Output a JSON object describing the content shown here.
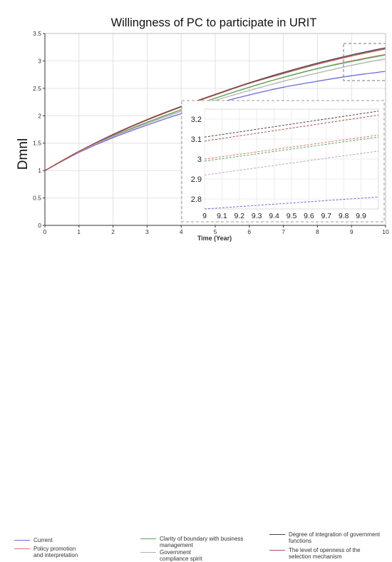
{
  "chart_data": {
    "type": "line",
    "title": "Willingness of PC to participate in URIT",
    "xlabel": "Time (Year)",
    "ylabel": "Dmnl",
    "xlim": [
      0,
      10
    ],
    "ylim": [
      0,
      3.5
    ],
    "x_ticks": [
      "0",
      "1",
      "2",
      "3",
      "4",
      "5",
      "6",
      "7",
      "8",
      "9",
      "10"
    ],
    "y_ticks": [
      "0",
      "0.5",
      "1",
      "1.5",
      "2",
      "2.5",
      "3",
      "3.5"
    ],
    "grid": true,
    "x": [
      0,
      1,
      2,
      3,
      4,
      5,
      6,
      7,
      8,
      9,
      10
    ],
    "series": [
      {
        "name": "Current",
        "color": "#6a6ae0",
        "values": [
          1.0,
          1.33,
          1.6,
          1.83,
          2.04,
          2.22,
          2.38,
          2.52,
          2.63,
          2.73,
          2.81
        ]
      },
      {
        "name": "Policy promotion and interpretation",
        "color": "#e0736a",
        "values": [
          1.0,
          1.34,
          1.63,
          1.88,
          2.11,
          2.32,
          2.52,
          2.7,
          2.86,
          3.0,
          3.12
        ]
      },
      {
        "name": "Clarity of boundary with business management",
        "color": "#55aa55",
        "values": [
          1.0,
          1.34,
          1.63,
          1.88,
          2.11,
          2.32,
          2.52,
          2.7,
          2.86,
          2.99,
          3.11
        ]
      },
      {
        "name": "Government compliance spirit",
        "color": "#b0b0b0",
        "values": [
          1.0,
          1.34,
          1.62,
          1.86,
          2.08,
          2.28,
          2.46,
          2.63,
          2.78,
          2.92,
          3.04
        ]
      },
      {
        "name": "Degree of integration of government functions",
        "color": "#444444",
        "values": [
          1.0,
          1.35,
          1.66,
          1.93,
          2.17,
          2.39,
          2.6,
          2.79,
          2.96,
          3.11,
          3.24
        ]
      },
      {
        "name": "The level of openness of the selection mechanism",
        "color": "#b84a4a",
        "values": [
          1.0,
          1.35,
          1.65,
          1.92,
          2.16,
          2.38,
          2.59,
          2.77,
          2.94,
          3.09,
          3.22
        ]
      }
    ],
    "inset": {
      "xlim": [
        9,
        10
      ],
      "ylim": [
        2.75,
        3.25
      ],
      "x_ticks": [
        "9",
        "9.1",
        "9.2",
        "9.3",
        "9.4",
        "9.5",
        "9.6",
        "9.7",
        "9.8",
        "9.9"
      ],
      "y_ticks": [
        "2.8",
        "2.9",
        "3",
        "3.1",
        "3.2"
      ],
      "legend_placement": "inside-lower-right"
    },
    "legend_placement": "bottom"
  }
}
